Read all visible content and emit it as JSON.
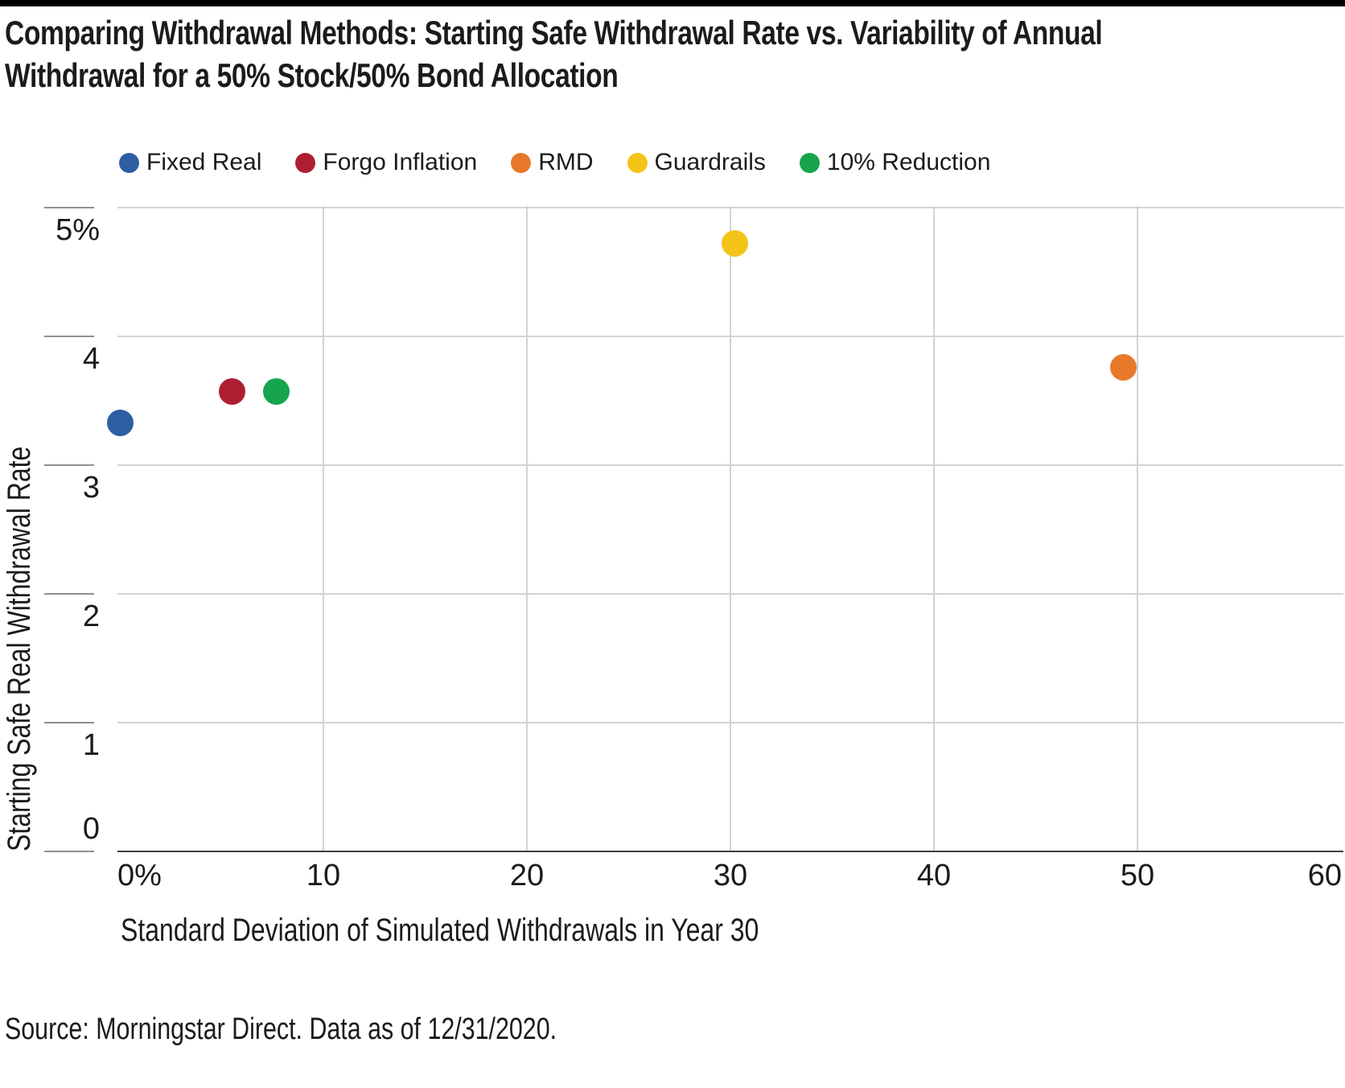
{
  "header": {
    "title_line1": "Comparing Withdrawal Methods: Starting Safe Withdrawal Rate vs. Variability of Annual",
    "title_line2": "Withdrawal for a 50% Stock/50% Bond Allocation"
  },
  "chart_data": {
    "type": "scatter",
    "title": "Comparing Withdrawal Methods: Starting Safe Withdrawal Rate vs. Variability of Annual Withdrawal for a 50% Stock/50% Bond Allocation",
    "xlabel": "Standard Deviation of Simulated Withdrawals in Year 30",
    "ylabel": "Starting Safe Real Withdrawal Rate",
    "xlim": [
      0,
      60
    ],
    "ylim": [
      0,
      5
    ],
    "grid": "on",
    "legend_position": "top",
    "x_ticks": [
      {
        "value": 0,
        "label": "0%"
      },
      {
        "value": 10,
        "label": "10"
      },
      {
        "value": 20,
        "label": "20"
      },
      {
        "value": 30,
        "label": "30"
      },
      {
        "value": 40,
        "label": "40"
      },
      {
        "value": 50,
        "label": "50"
      },
      {
        "value": 60,
        "label": "60"
      }
    ],
    "x_gridlines": [
      10,
      20,
      30,
      40,
      50
    ],
    "y_ticks": [
      {
        "value": 5,
        "label": "5%"
      },
      {
        "value": 4,
        "label": "4"
      },
      {
        "value": 3,
        "label": "3"
      },
      {
        "value": 2,
        "label": "2"
      },
      {
        "value": 1,
        "label": "1"
      },
      {
        "value": 0,
        "label": "0"
      }
    ],
    "series": [
      {
        "name": "Fixed Real",
        "color": "#2D5EA2",
        "points": [
          {
            "x": 0,
            "y": 3.33
          }
        ]
      },
      {
        "name": "Forgo Inflation",
        "color": "#AE1E32",
        "points": [
          {
            "x": 5.5,
            "y": 3.57
          }
        ]
      },
      {
        "name": "RMD",
        "color": "#E8792B",
        "points": [
          {
            "x": 49.3,
            "y": 3.76
          }
        ]
      },
      {
        "name": "Guardrails",
        "color": "#F4C317",
        "points": [
          {
            "x": 30.2,
            "y": 4.72
          }
        ]
      },
      {
        "name": "10% Reduction",
        "color": "#16A44D",
        "points": [
          {
            "x": 7.7,
            "y": 3.57
          }
        ]
      }
    ]
  },
  "footer": {
    "source": "Source: Morningstar Direct. Data as of 12/31/2020."
  },
  "colors": {
    "topbar": "#000000",
    "text": "#1b1b1b",
    "gridline": "#d3d3d3",
    "tick": "#8f8f8f",
    "baseline": "#3e3e3e"
  }
}
